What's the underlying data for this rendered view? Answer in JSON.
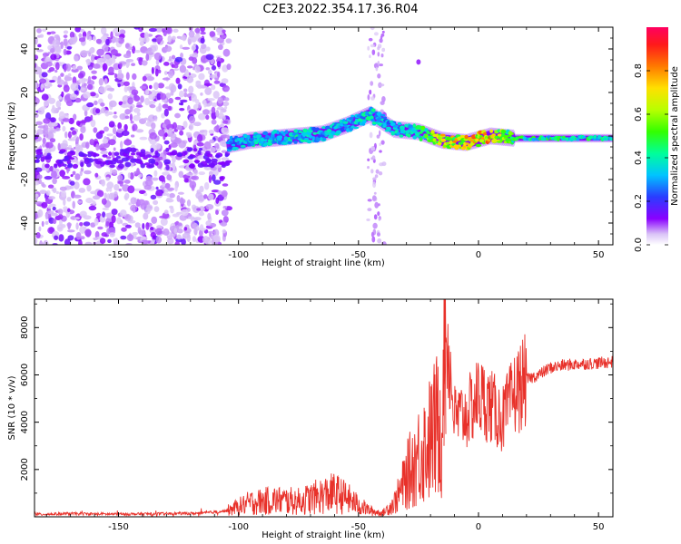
{
  "title": "C2E3.2022.354.17.36.R04",
  "chart_data": [
    {
      "type": "heatmap",
      "xlabel": "Height of straight line (km)",
      "ylabel": "Frequency (Hz)",
      "xlim": [
        -185,
        56
      ],
      "ylim": [
        -50,
        50
      ],
      "xticks": [
        -150,
        -100,
        -50,
        0,
        50
      ],
      "yticks": [
        -40,
        -20,
        0,
        20,
        40
      ],
      "colorbar": {
        "label": "Normalized spectral amplitude",
        "ticks": [
          0.0,
          0.2,
          0.4,
          0.6,
          0.8
        ],
        "range": [
          0,
          1
        ],
        "colormap": [
          "#ffffff",
          "#c6a0f5",
          "#8000ff",
          "#3030ff",
          "#00c0ff",
          "#00ff80",
          "#80ff00",
          "#ffd000",
          "#ff6000",
          "#ff0040"
        ]
      },
      "ridge": {
        "description_points": [
          {
            "x": -104,
            "y": -4,
            "amp": 0.35
          },
          {
            "x": -95,
            "y": -2,
            "amp": 0.45
          },
          {
            "x": -85,
            "y": -1,
            "amp": 0.4
          },
          {
            "x": -75,
            "y": 0,
            "amp": 0.45
          },
          {
            "x": -65,
            "y": 1,
            "amp": 0.4
          },
          {
            "x": -55,
            "y": 5,
            "amp": 0.4
          },
          {
            "x": -45,
            "y": 10,
            "amp": 0.45
          },
          {
            "x": -35,
            "y": 3,
            "amp": 0.4
          },
          {
            "x": -25,
            "y": 2,
            "amp": 0.5
          },
          {
            "x": -15,
            "y": -2,
            "amp": 0.8
          },
          {
            "x": -5,
            "y": -3,
            "amp": 0.85
          },
          {
            "x": 5,
            "y": 0,
            "amp": 0.9
          },
          {
            "x": 15,
            "y": -1,
            "amp": 0.55
          },
          {
            "x": 30,
            "y": -1,
            "amp": 0.5
          },
          {
            "x": 45,
            "y": -1,
            "amp": 0.5
          },
          {
            "x": 55,
            "y": -1,
            "amp": 0.5
          }
        ]
      }
    },
    {
      "type": "line",
      "xlabel": "Height of straight line (km)",
      "ylabel": "SNR (10 * v/v)",
      "xlim": [
        -185,
        56
      ],
      "ylim": [
        0,
        9200
      ],
      "xticks": [
        -150,
        -100,
        -50,
        0,
        50
      ],
      "yticks": [
        2000,
        4000,
        6000,
        8000
      ],
      "line_color": "#e8312a",
      "series": [
        {
          "x": [
            -185,
            -170,
            -150,
            -130,
            -115,
            -105,
            -95,
            -85,
            -75,
            -65,
            -60,
            -55,
            -50,
            -45,
            -40,
            -35,
            -32,
            -30,
            -25,
            -20,
            -15,
            -14,
            -10,
            -5,
            0,
            5,
            10,
            15,
            20,
            25,
            30,
            35,
            40,
            50,
            56
          ],
          "values": [
            100,
            130,
            110,
            130,
            150,
            250,
            600,
            700,
            650,
            900,
            1000,
            800,
            500,
            250,
            150,
            600,
            1200,
            1700,
            2600,
            3300,
            4300,
            8500,
            4200,
            4300,
            5100,
            4700,
            4100,
            5200,
            5800,
            6000,
            6300,
            6400,
            6450,
            6500,
            6550
          ]
        }
      ]
    }
  ]
}
